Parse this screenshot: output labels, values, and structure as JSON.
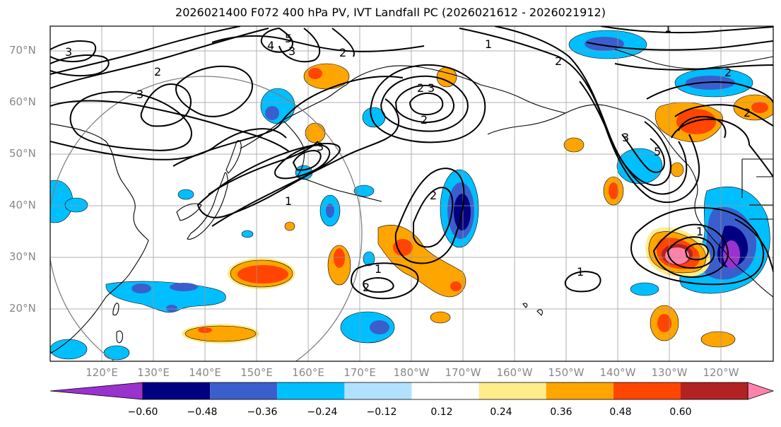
{
  "title": "2026021400 F072 400 hPa PV, IVT Landfall PC (2026021612 - 2026021912)",
  "map": {
    "lon_range_deg_east": [
      110,
      250
    ],
    "lat_range_deg": [
      10,
      75
    ],
    "lat_labels": [
      "70°N",
      "60°N",
      "50°N",
      "40°N",
      "30°N",
      "20°N"
    ],
    "lon_labels": [
      "120°E",
      "130°E",
      "140°E",
      "150°E",
      "160°E",
      "170°E",
      "180°W",
      "170°W",
      "160°W",
      "150°W",
      "140°W",
      "130°W",
      "120°W"
    ],
    "contour_labels": [
      "1",
      "2",
      "3",
      "4",
      "5"
    ]
  },
  "colorbar": {
    "tick_labels": [
      "−0.60",
      "−0.48",
      "−0.36",
      "−0.24",
      "−0.12",
      "0.12",
      "0.24",
      "0.36",
      "0.48",
      "0.60"
    ],
    "colors": [
      "#9a32cd",
      "#000080",
      "#3a5fcd",
      "#00bfff",
      "#b0e2ff",
      "#ffffff",
      "#ffec8b",
      "#ffa500",
      "#ff4500",
      "#b22222",
      "#ff82ab"
    ]
  }
}
